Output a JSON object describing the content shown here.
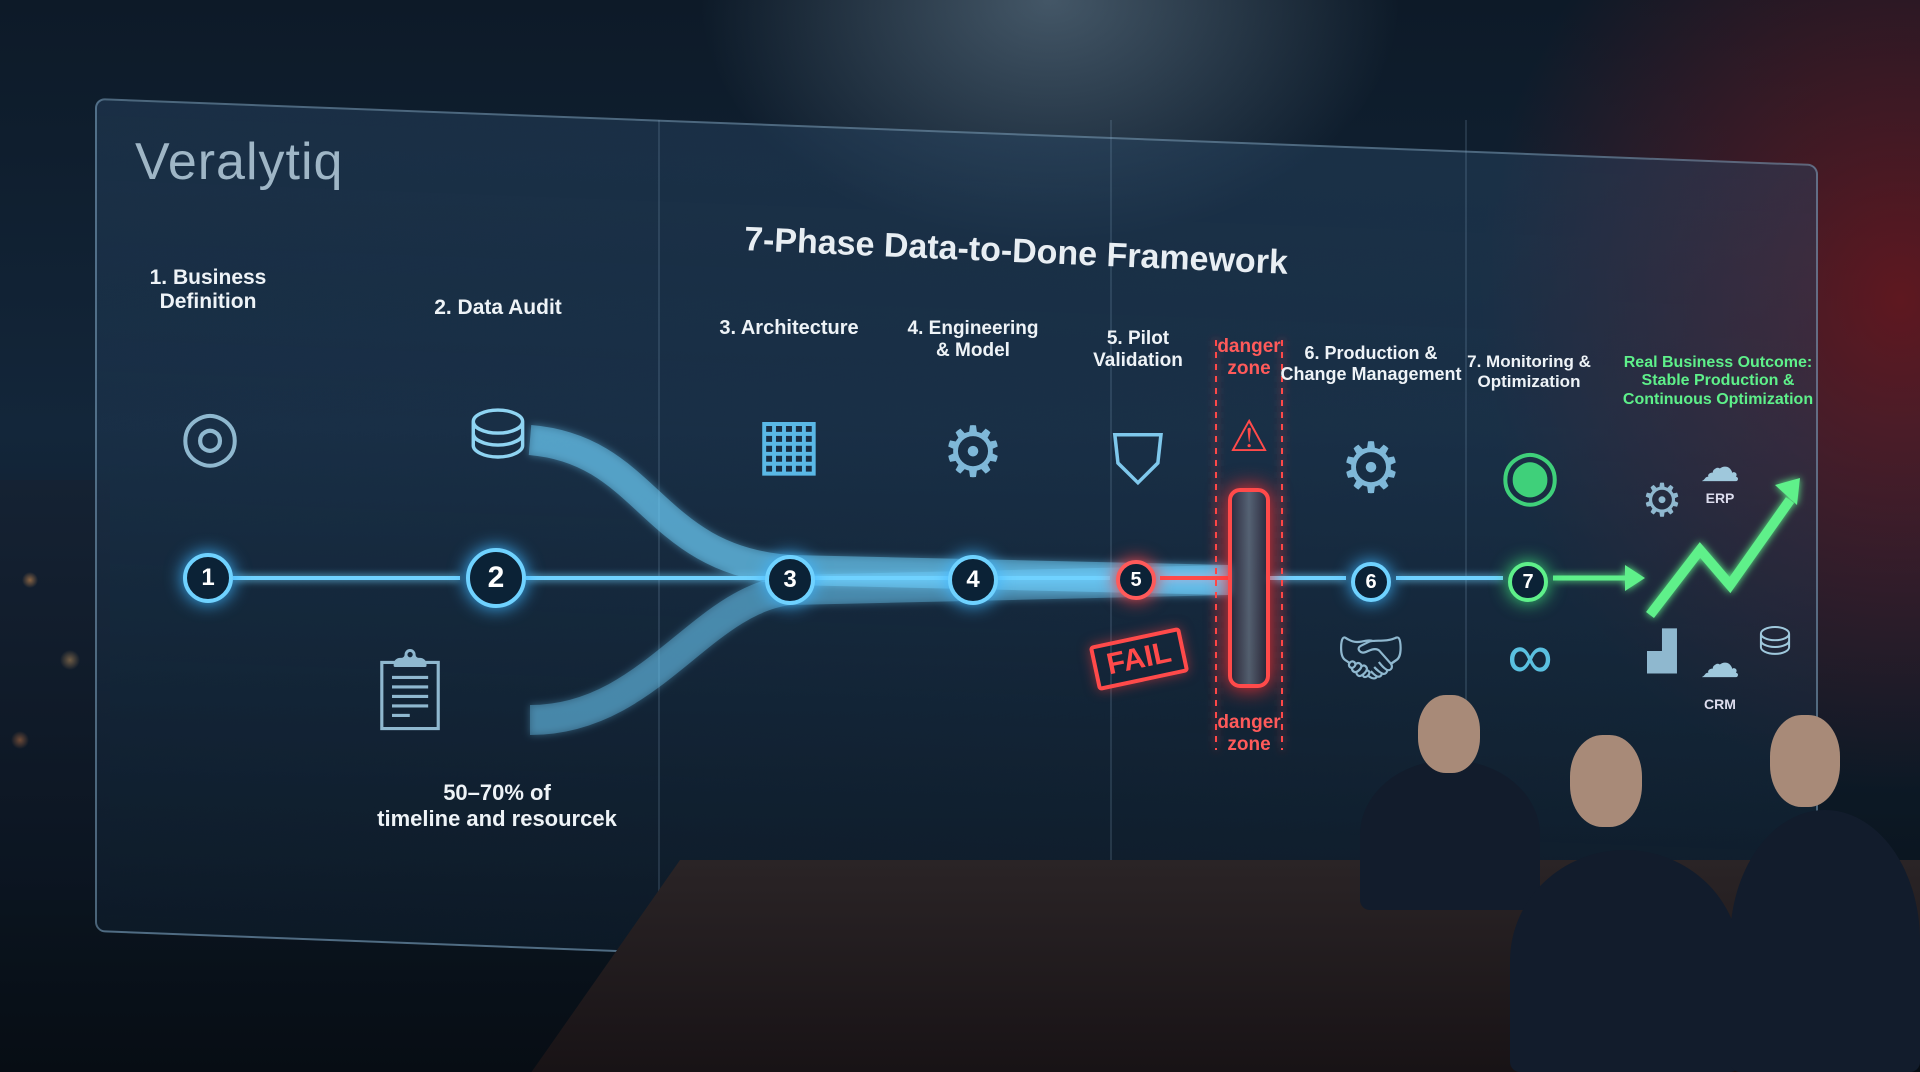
{
  "brand": {
    "logo": "Veralytiq"
  },
  "title": "7-Phase Data-to-Done Framework",
  "colors": {
    "flow": "#6fd2ff",
    "danger": "#ff4a4a",
    "success": "#5ef08a",
    "background": "#0d1a28"
  },
  "phases": [
    {
      "number": "1",
      "label_line1": "1. Business",
      "label_line2": "Definition",
      "icon": "target-arrow-icon"
    },
    {
      "number": "2",
      "label_line1": "2. Data Audit",
      "label_line2": "",
      "icon": "database-search-icon"
    },
    {
      "number": "3",
      "label_line1": "3. Architecture",
      "label_line2": "",
      "icon": "architecture-blueprint-icon"
    },
    {
      "number": "4",
      "label_line1": "4. Engineering",
      "label_line2": "& Model",
      "icon": "gear-neural-net-icon"
    },
    {
      "number": "5",
      "label_line1": "5. Pilot",
      "label_line2": "Validation",
      "icon": "flask-shield-icon"
    },
    {
      "number": "6",
      "label_line1": "6. Production &",
      "label_line2": "Change Management",
      "icon": "team-gear-icon"
    },
    {
      "number": "7",
      "label_line1": "7. Monitoring &",
      "label_line2": "Optimization",
      "icon": "radar-pulse-icon"
    }
  ],
  "danger_zone": {
    "top_line1": "danger",
    "top_line2": "zone",
    "bottom_line1": "danger",
    "bottom_line2": "zone",
    "fail_stamp": "FAIL",
    "icon": "warning-icon"
  },
  "audit_note": {
    "line1": "50–70% of",
    "line2": "timeline and resourcek"
  },
  "outcome": {
    "line1": "Real Business Outcome:",
    "line2": "Stable Production &",
    "line3": "Continuous Optimization",
    "erp": "ERP",
    "crm": "CRM"
  }
}
